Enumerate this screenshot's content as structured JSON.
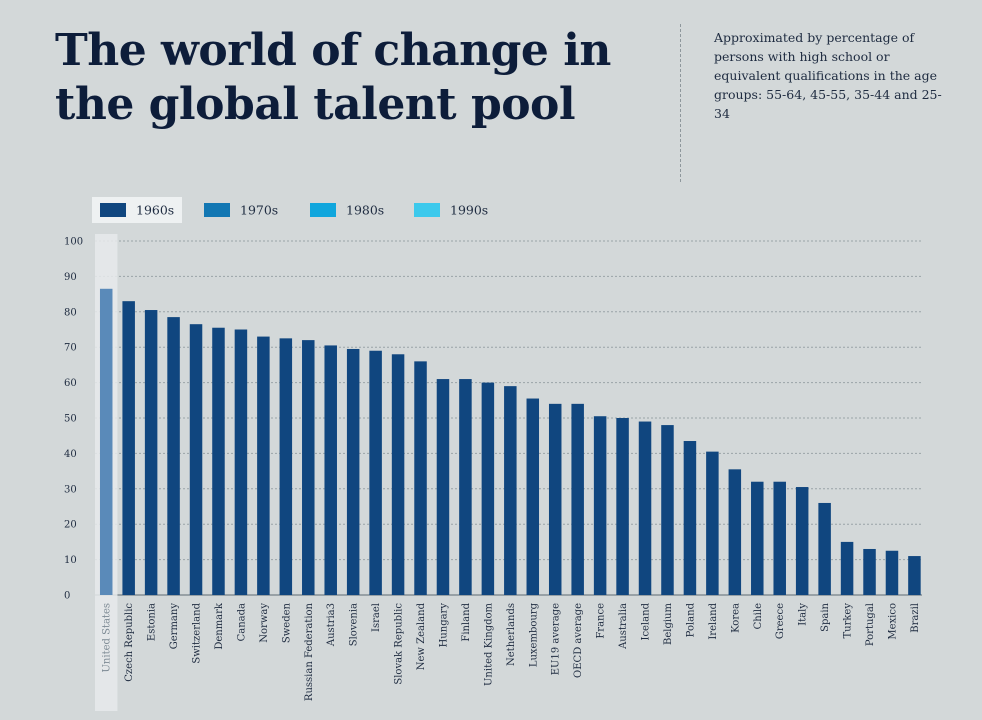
{
  "header": {
    "title": "The world of change in the global talent pool",
    "subtitle": "Approximated by percentage of persons with high school or equivalent qualifications in the age groups: 55-64, 45-55, 35-44 and 25-34"
  },
  "colors": {
    "background": "#d3d8d9",
    "bar": "#10467f",
    "highlight_bar": "#5a8ab9",
    "highlight_band": "#e6eaeb",
    "legend": [
      "#10467f",
      "#1277b3",
      "#10a6dd",
      "#3cc9ec"
    ],
    "gridline": "#9aa3a8",
    "text": "#1e2b40"
  },
  "chart_data": {
    "type": "bar",
    "legend": {
      "placement": "top-left",
      "entries": [
        "1960s",
        "1970s",
        "1980s",
        "1990s"
      ]
    },
    "categories": [
      "United States",
      "Czech Republic",
      "Estonia",
      "Germany",
      "Switzerland",
      "Denmark",
      "Canada",
      "Norway",
      "Sweden",
      "Russian Federation",
      "Austria3",
      "Slovenia",
      "Israel",
      "Slovak Republic",
      "New Zealand",
      "Hungary",
      "Finland",
      "United Kingdom",
      "Netherlands",
      "Luxembourg",
      "EU19  average",
      "OECD average",
      "France",
      "Australia",
      "Iceland",
      "Belgium",
      "Poland",
      "Ireland",
      "Korea",
      "Chile",
      "Greece",
      "Italy",
      "Spain",
      "Turkey",
      "Portugal",
      "Mexico",
      "Brazil"
    ],
    "series": [
      {
        "name": "1960s",
        "values": [
          86.5,
          83,
          80.5,
          78.5,
          76.5,
          75.5,
          75,
          73,
          72.5,
          72,
          70.5,
          69.5,
          69,
          68,
          66,
          61,
          61,
          60,
          59,
          55.5,
          54,
          54,
          50.5,
          50,
          49,
          48,
          43.5,
          40.5,
          35.5,
          32,
          32,
          30.5,
          26,
          15,
          13,
          12.5,
          11
        ]
      }
    ],
    "highlighted_category": "United States",
    "ylim": [
      0,
      100
    ],
    "yticks": [
      0,
      10,
      20,
      30,
      40,
      50,
      60,
      70,
      80,
      90,
      100
    ],
    "grid": "horizontal dashed",
    "xlabel": "",
    "ylabel": ""
  }
}
